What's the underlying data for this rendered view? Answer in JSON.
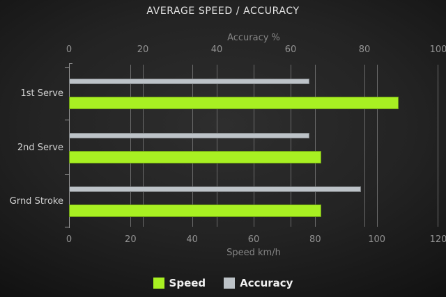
{
  "chart_data": {
    "type": "bar",
    "orientation": "horizontal",
    "title": "AVERAGE SPEED / ACCURACY",
    "categories": [
      "1st Serve",
      "2nd Serve",
      "Grnd Stroke"
    ],
    "series": [
      {
        "name": "Speed",
        "axis": "bottom",
        "color": "#a8f022",
        "values": [
          107,
          82,
          82
        ]
      },
      {
        "name": "Accuracy",
        "axis": "top",
        "color": "#bdc3c8",
        "values": [
          65,
          65,
          79
        ]
      }
    ],
    "axes": {
      "top": {
        "label": "Accuracy %",
        "min": 0,
        "max": 100,
        "ticks": [
          0,
          20,
          40,
          60,
          80,
          100
        ]
      },
      "bottom": {
        "label": "Speed km/h",
        "min": 0,
        "max": 120,
        "ticks": [
          0,
          20,
          40,
          60,
          80,
          100,
          120
        ]
      }
    },
    "legend": [
      {
        "label": "Speed",
        "color": "#a8f022"
      },
      {
        "label": "Accuracy",
        "color": "#bdc3c8"
      }
    ],
    "style": {
      "gridline_color": "#6b6b6b",
      "background_center": "#2e2e2e",
      "background_edge": "#0a0a0a"
    }
  }
}
